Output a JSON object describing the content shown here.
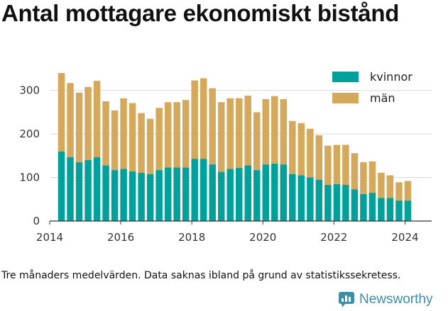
{
  "title": "Antal mottagare ekonomiskt bistånd",
  "note": "Tre månaders medelvärden. Data saknas ibland på grund av statistikssekretess.",
  "brand": {
    "name": "Newsworthy",
    "icon": "newsworthy-logo-icon",
    "color": "#3b8fa6"
  },
  "colors": {
    "kvinnor": "#00a19a",
    "man": "#d5a95c"
  },
  "chart_data": {
    "type": "bar",
    "stacked": true,
    "title": "Antal mottagare ekonomiskt bistånd",
    "xlabel": "",
    "ylabel": "",
    "ylim": [
      0,
      345
    ],
    "xlim": [
      2014.0,
      2024.75
    ],
    "yticks": [
      0,
      100,
      200,
      300
    ],
    "xticks": [
      2014,
      2016,
      2018,
      2020,
      2022,
      2024
    ],
    "grid": true,
    "legend_position": "top-right",
    "x": [
      2014.33,
      2014.58,
      2014.83,
      2015.08,
      2015.33,
      2015.58,
      2015.83,
      2016.08,
      2016.33,
      2016.58,
      2016.83,
      2017.08,
      2017.33,
      2017.58,
      2017.83,
      2018.08,
      2018.33,
      2018.58,
      2018.83,
      2019.08,
      2019.33,
      2019.58,
      2019.83,
      2020.08,
      2020.33,
      2020.58,
      2020.83,
      2021.08,
      2021.33,
      2021.58,
      2021.83,
      2022.08,
      2022.33,
      2022.58,
      2022.83,
      2023.08,
      2023.33,
      2023.58,
      2023.83,
      2024.08
    ],
    "series": [
      {
        "name": "kvinnor",
        "values": [
          160,
          147,
          135,
          140,
          147,
          128,
          117,
          120,
          114,
          111,
          108,
          117,
          123,
          123,
          123,
          143,
          143,
          130,
          113,
          120,
          122,
          128,
          117,
          130,
          132,
          130,
          108,
          105,
          100,
          95,
          83,
          85,
          83,
          73,
          62,
          65,
          53,
          53,
          47,
          47
        ]
      },
      {
        "name": "män",
        "values": [
          180,
          170,
          160,
          168,
          175,
          147,
          137,
          162,
          157,
          137,
          127,
          143,
          150,
          150,
          155,
          180,
          185,
          175,
          160,
          162,
          160,
          160,
          133,
          150,
          155,
          150,
          122,
          120,
          112,
          102,
          90,
          90,
          92,
          83,
          73,
          72,
          58,
          52,
          42,
          45
        ]
      }
    ]
  }
}
